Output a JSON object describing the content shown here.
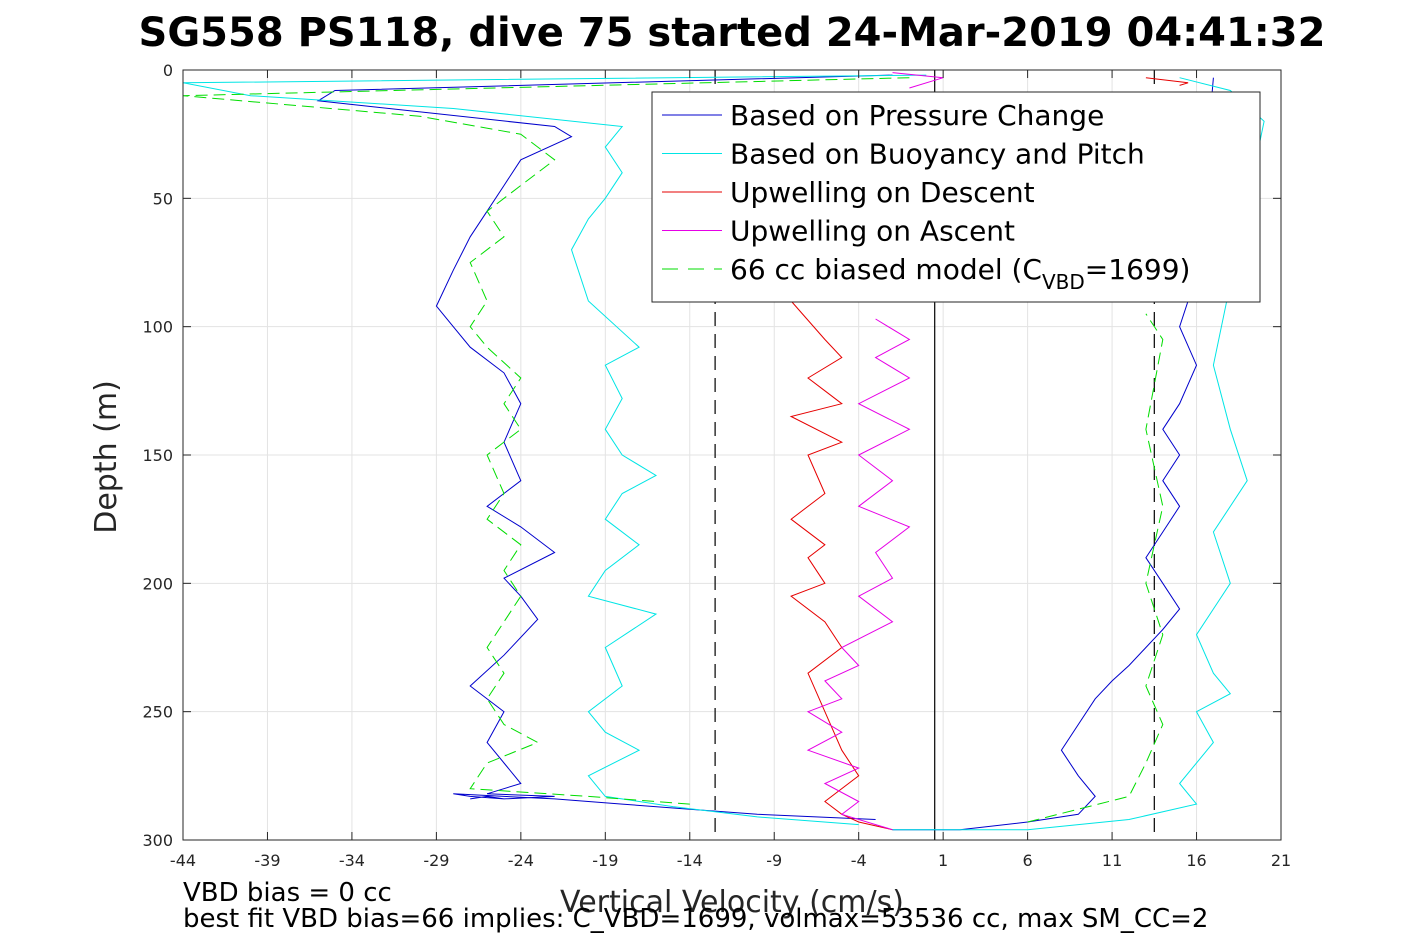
{
  "chart_data": {
    "type": "line",
    "title": "SG558 PS118, dive 75 started 24-Mar-2019 04:41:32",
    "xlabel": "Vertical Velocity (cm/s)",
    "ylabel": "Depth (m)",
    "xlim": [
      -44,
      21
    ],
    "ylim": [
      0,
      300
    ],
    "y_reversed": true,
    "grid": true,
    "x_ticks": [
      -44,
      -39,
      -34,
      -29,
      -24,
      -19,
      -14,
      -9,
      -4,
      1,
      6,
      11,
      16,
      21
    ],
    "y_ticks": [
      0,
      50,
      100,
      150,
      200,
      250,
      300
    ],
    "legend_position": "top-right",
    "reference_lines": [
      {
        "orientation": "vertical",
        "x": 0.5,
        "style": "solid",
        "color": "#000000"
      },
      {
        "orientation": "vertical",
        "x": -12.5,
        "style": "dashed",
        "color": "#000000"
      },
      {
        "orientation": "vertical",
        "x": 13.5,
        "style": "dashed",
        "color": "#000000"
      }
    ],
    "series": [
      {
        "name": "Based on Pressure Change",
        "color": "#0000cc",
        "style": "solid",
        "descent": {
          "x": [
            -2,
            -35,
            -36,
            -22,
            -21,
            -24,
            -25,
            -26,
            -27,
            -28,
            -29,
            -28,
            -27,
            -25,
            -24,
            -25,
            -24,
            -26,
            -24,
            -22,
            -25,
            -24,
            -23,
            -25,
            -27,
            -25,
            -26,
            -25,
            -24,
            -26,
            -22,
            -25,
            -26,
            -27,
            -26,
            -25,
            -27,
            -28,
            -25,
            -22,
            -18,
            -14,
            -10,
            -3
          ],
          "y": [
            2,
            8,
            12,
            22,
            26,
            35,
            45,
            55,
            65,
            78,
            92,
            100,
            108,
            118,
            130,
            145,
            160,
            170,
            178,
            188,
            198,
            205,
            214,
            228,
            240,
            250,
            262,
            270,
            278,
            282,
            283,
            284,
            283,
            284,
            283,
            284,
            283,
            282,
            283,
            284,
            286,
            288,
            290,
            292
          ]
        },
        "ascent": {
          "x": [
            -2,
            2,
            6,
            9,
            10,
            9,
            8,
            9,
            10,
            11,
            12,
            13,
            14,
            15,
            14,
            13,
            14,
            15,
            14,
            15,
            14,
            15,
            16,
            15,
            16,
            17
          ],
          "y": [
            296,
            296,
            293,
            290,
            283,
            275,
            265,
            255,
            245,
            238,
            232,
            225,
            218,
            210,
            200,
            190,
            180,
            170,
            160,
            150,
            140,
            130,
            115,
            100,
            80,
            3
          ]
        }
      },
      {
        "name": "Based on Buoyancy and Pitch",
        "color": "#00e5e5",
        "style": "solid",
        "descent": {
          "x": [
            0,
            -44,
            -40,
            -28,
            -18,
            -19,
            -18,
            -19,
            -20,
            -21,
            -20,
            -17,
            -19,
            -18,
            -19,
            -18,
            -16,
            -18,
            -19,
            -17,
            -19,
            -20,
            -16,
            -19,
            -18,
            -20,
            -19,
            -17,
            -20,
            -19,
            -15,
            -10,
            -4
          ],
          "y": [
            2,
            5,
            10,
            15,
            22,
            30,
            40,
            50,
            58,
            70,
            90,
            108,
            115,
            128,
            140,
            150,
            158,
            165,
            175,
            185,
            195,
            205,
            212,
            225,
            240,
            250,
            258,
            265,
            275,
            283,
            287,
            291,
            294
          ]
        },
        "ascent": {
          "x": [
            -2,
            6,
            12,
            16,
            15,
            17,
            16,
            18,
            17,
            16,
            17,
            18,
            17,
            19,
            18,
            17,
            20,
            18,
            15
          ],
          "y": [
            296,
            296,
            292,
            286,
            278,
            262,
            250,
            243,
            235,
            220,
            210,
            200,
            180,
            160,
            140,
            115,
            20,
            8,
            3
          ]
        }
      },
      {
        "name": "Upwelling on Descent",
        "color": "#e60000",
        "style": "solid",
        "descent": {
          "x": [
            -8,
            -6,
            -5,
            -7,
            -6,
            -5,
            -8,
            -5,
            -7,
            -6,
            -8,
            -6,
            -7,
            -6,
            -8,
            -6,
            -5,
            -7,
            -6,
            -5,
            -4,
            -6,
            -5,
            -4,
            -2
          ],
          "y": [
            90,
            105,
            112,
            120,
            125,
            130,
            135,
            145,
            150,
            165,
            175,
            185,
            190,
            200,
            205,
            215,
            225,
            235,
            250,
            265,
            275,
            285,
            290,
            293,
            296
          ]
        },
        "ascent": {
          "x": [
            13,
            15.5,
            15
          ],
          "y": [
            3,
            5,
            6
          ]
        }
      },
      {
        "name": "Upwelling on Ascent",
        "color": "#e600e6",
        "style": "solid",
        "descent": {
          "x": [
            -3,
            -1,
            -3,
            -1,
            -4,
            -1,
            -4,
            -2,
            -4,
            -1,
            -3,
            -2,
            -4,
            -2,
            -5,
            -4,
            -6,
            -5,
            -7,
            -5,
            -7,
            -4,
            -6,
            -4,
            -5,
            -3,
            -2
          ],
          "y": [
            97,
            105,
            112,
            120,
            130,
            140,
            150,
            160,
            170,
            178,
            188,
            198,
            205,
            215,
            225,
            232,
            238,
            245,
            250,
            258,
            265,
            272,
            278,
            285,
            290,
            294,
            296
          ]
        },
        "ascent": {
          "x": [
            -2,
            1,
            -1
          ],
          "y": [
            1,
            3,
            7
          ]
        }
      },
      {
        "name": "66 cc biased model (C",
        "color": "#00dd00",
        "style": "dashed",
        "descent": {
          "x": [
            -1,
            -44,
            -30,
            -24,
            -22,
            -24,
            -26,
            -25,
            -27,
            -26,
            -27,
            -26,
            -24,
            -25,
            -24,
            -26,
            -25,
            -26,
            -24,
            -25,
            -24,
            -25,
            -26,
            -25,
            -26,
            -25,
            -23,
            -26,
            -27,
            -20,
            -14
          ],
          "y": [
            3,
            10,
            18,
            25,
            35,
            45,
            55,
            65,
            75,
            90,
            100,
            108,
            120,
            130,
            140,
            150,
            165,
            175,
            185,
            195,
            205,
            215,
            225,
            235,
            245,
            255,
            262,
            270,
            280,
            283,
            286
          ]
        },
        "ascent": {
          "x": [
            6,
            12,
            13,
            14,
            13,
            14,
            13,
            14,
            13,
            14,
            13
          ],
          "y": [
            293,
            283,
            270,
            255,
            240,
            220,
            200,
            170,
            140,
            105,
            95
          ]
        }
      }
    ],
    "legend_subscript": "VBD",
    "legend_suffix": "=1699)",
    "footer_lines": [
      "VBD bias = 0 cc",
      "best fit VBD bias=66 implies: C_VBD=1699, volmax=53536 cc, max SM_CC=2"
    ]
  }
}
